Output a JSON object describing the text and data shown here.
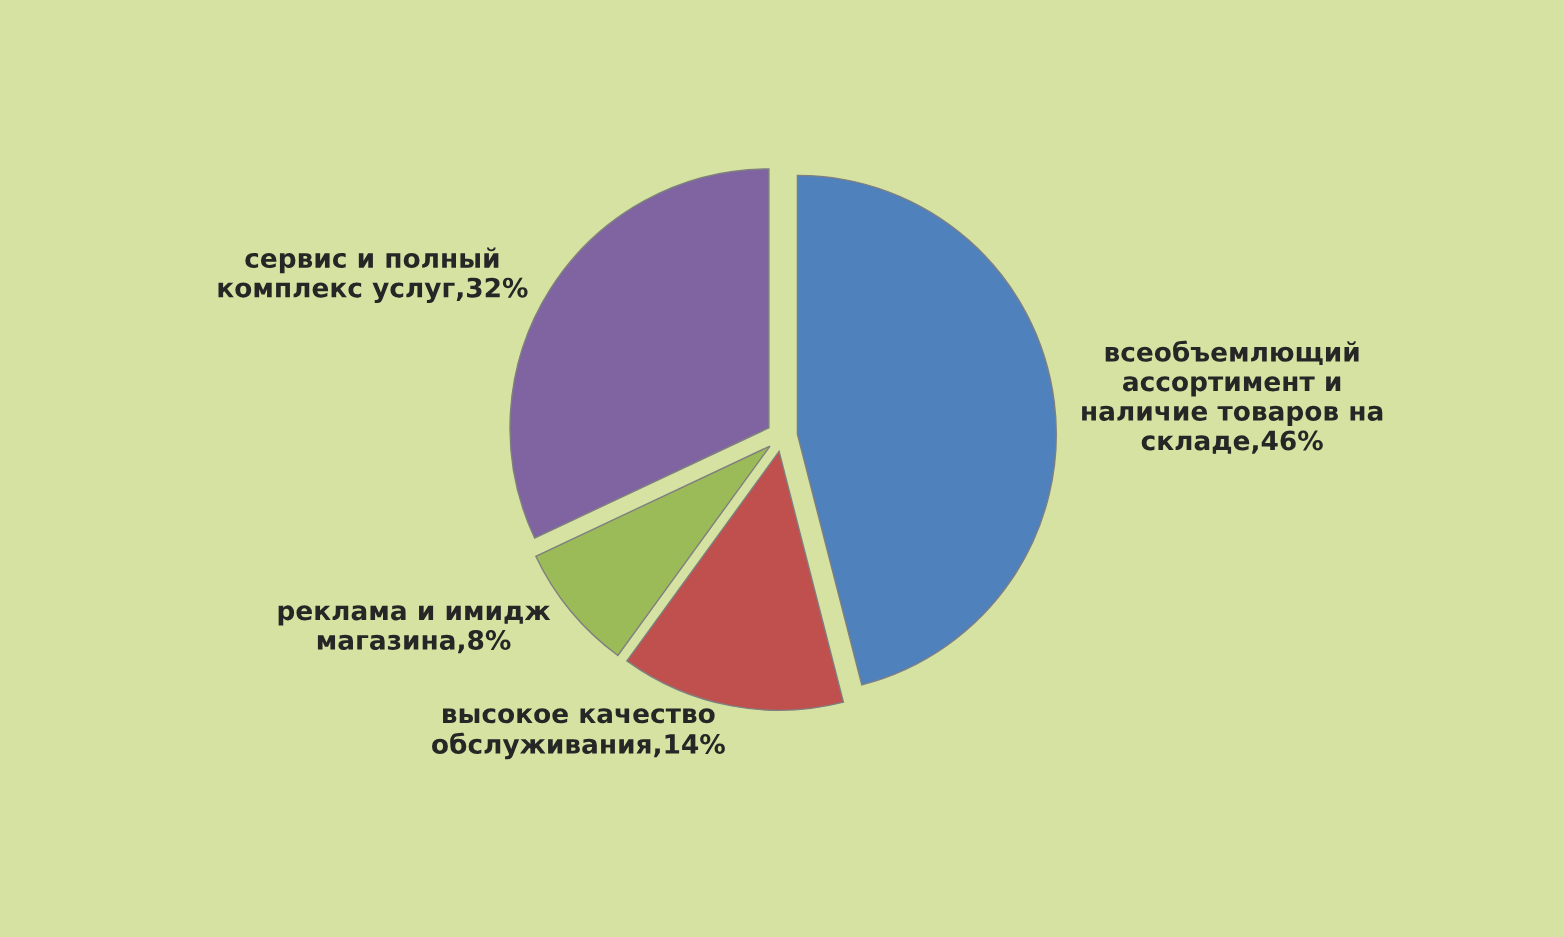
{
  "chart_data": {
    "type": "pie",
    "categories": [
      "всеобъемлющий\nассортимент и\nналичие товаров на\nскладе,46%",
      "высокое качество\nобслуживания,14%",
      "реклама и имидж\nмагазина,8%",
      "сервис и полный\nкомплекс услуг,32%"
    ],
    "values": [
      46,
      14,
      8,
      32
    ],
    "colors": [
      "#4f81bd",
      "#c0504d",
      "#9bbb59",
      "#8064a2"
    ],
    "legend": false
  }
}
